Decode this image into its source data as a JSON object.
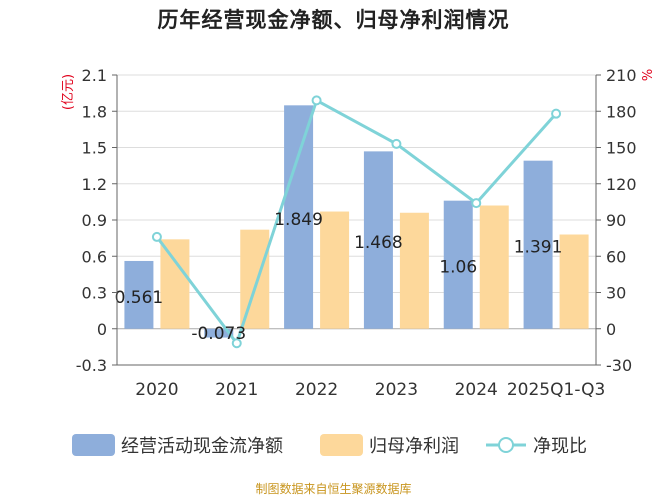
{
  "title": "历年经营现金净额、归母净利润情况",
  "source": "制图数据来自恒生聚源数据库",
  "colors": {
    "bar1": "#8eaedb",
    "bar2": "#fdd89b",
    "line": "#7fd3d8",
    "axis_unit": "#e0001b",
    "text": "#333333",
    "grid": "#dddddd"
  },
  "chart_data": {
    "type": "bar+line",
    "categories": [
      "2020",
      "2021",
      "2022",
      "2023",
      "2024",
      "2025Q1-Q3"
    ],
    "series": [
      {
        "name": "经营活动现金流净额",
        "type": "bar",
        "axis": "left",
        "values": [
          0.561,
          -0.073,
          1.849,
          1.468,
          1.06,
          1.391
        ],
        "labels": [
          "0.561",
          "-0.073",
          "1.849",
          "1.468",
          "1.06",
          "1.391"
        ]
      },
      {
        "name": "归母净利润",
        "type": "bar",
        "axis": "left",
        "values": [
          0.74,
          0.82,
          0.97,
          0.96,
          1.02,
          0.78
        ]
      },
      {
        "name": "净现比",
        "type": "line",
        "axis": "right",
        "values": [
          76,
          -12,
          189,
          153,
          104,
          178
        ]
      }
    ],
    "left_axis": {
      "unit": "(亿元)",
      "min": -0.3,
      "max": 2.1,
      "ticks": [
        "2.1",
        "1.8",
        "1.5",
        "1.2",
        "0.9",
        "0.6",
        "0.3",
        "0",
        "-0.3"
      ]
    },
    "right_axis": {
      "unit": "%",
      "min": -30,
      "max": 210,
      "ticks": [
        "210",
        "180",
        "150",
        "120",
        "90",
        "60",
        "30",
        "0",
        "-30"
      ]
    },
    "grid": true,
    "legend_position": "bottom"
  }
}
